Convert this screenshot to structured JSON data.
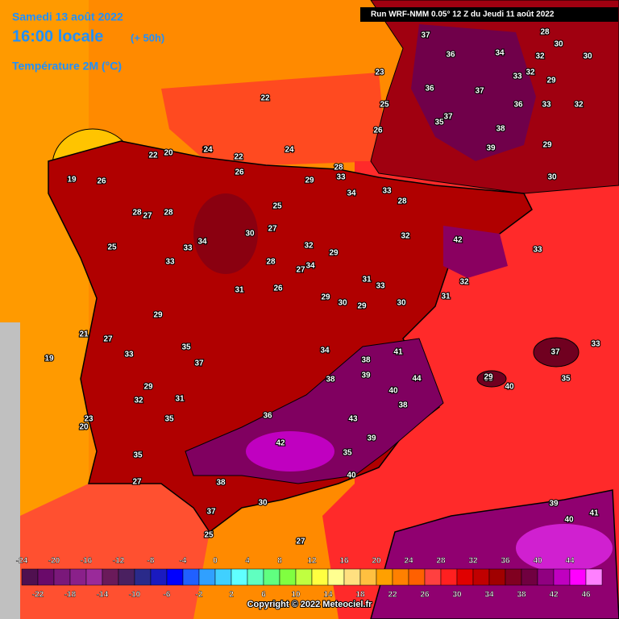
{
  "header": {
    "date": "Samedi 13 août 2022",
    "time": "16:00 locale",
    "offset": "(+ 50h)",
    "field": "Température 2M (°C)",
    "run": "Run WRF-NMM 0.05° 12 Z du Jeudi 11 août 2022"
  },
  "footer": {
    "copyright": "Copyright © 2022 Meteociel.fr"
  },
  "labels": [
    37,
    28,
    32,
    36,
    34,
    30,
    30,
    23,
    22,
    25,
    36,
    37,
    33,
    32,
    29,
    35,
    37,
    33,
    36,
    32,
    26,
    38,
    39,
    29,
    22,
    20,
    24,
    24,
    22,
    26,
    19,
    26,
    29,
    28,
    33,
    34,
    33,
    30,
    25,
    27,
    28,
    28,
    27,
    34,
    30,
    25,
    33,
    33,
    32,
    34,
    29,
    28,
    42,
    31,
    27,
    31,
    33,
    32,
    32,
    28,
    26,
    29,
    30,
    29,
    31,
    29,
    30,
    33,
    19,
    21,
    27,
    33,
    35,
    37,
    34,
    38,
    41,
    44,
    32,
    29,
    38,
    39,
    40,
    38,
    35,
    23,
    20,
    35,
    31,
    36,
    43,
    39,
    35,
    42,
    38,
    40,
    30,
    27,
    25,
    37,
    27,
    39,
    40,
    41,
    33,
    37,
    35,
    40,
    35,
    29,
    24
  ],
  "colorbar": {
    "values": [
      -24,
      -22,
      -20,
      -18,
      -16,
      -14,
      -12,
      -10,
      -8,
      -6,
      -4,
      -2,
      0,
      2,
      4,
      6,
      8,
      10,
      12,
      14,
      16,
      18,
      20,
      22,
      24,
      26,
      28,
      30,
      32,
      34,
      36,
      38,
      40,
      42,
      44,
      46
    ],
    "colors": [
      "#501050",
      "#6a0a6a",
      "#7a187a",
      "#8a208a",
      "#9a2a9a",
      "#6a1a5a",
      "#4a2060",
      "#2a2a8a",
      "#1a1ac0",
      "#0000ff",
      "#2060ff",
      "#30a0ff",
      "#40d0ff",
      "#60ffff",
      "#60ffc0",
      "#60ff80",
      "#80ff40",
      "#c0ff40",
      "#ffff40",
      "#ffff90",
      "#ffe080",
      "#ffc040",
      "#ffa000",
      "#ff8000",
      "#ff6000",
      "#ff4040",
      "#ff2020",
      "#e00000",
      "#c00000",
      "#a00000",
      "#800020",
      "#700040",
      "#900080",
      "#c000c0",
      "#ff00ff",
      "#ff80ff"
    ]
  }
}
